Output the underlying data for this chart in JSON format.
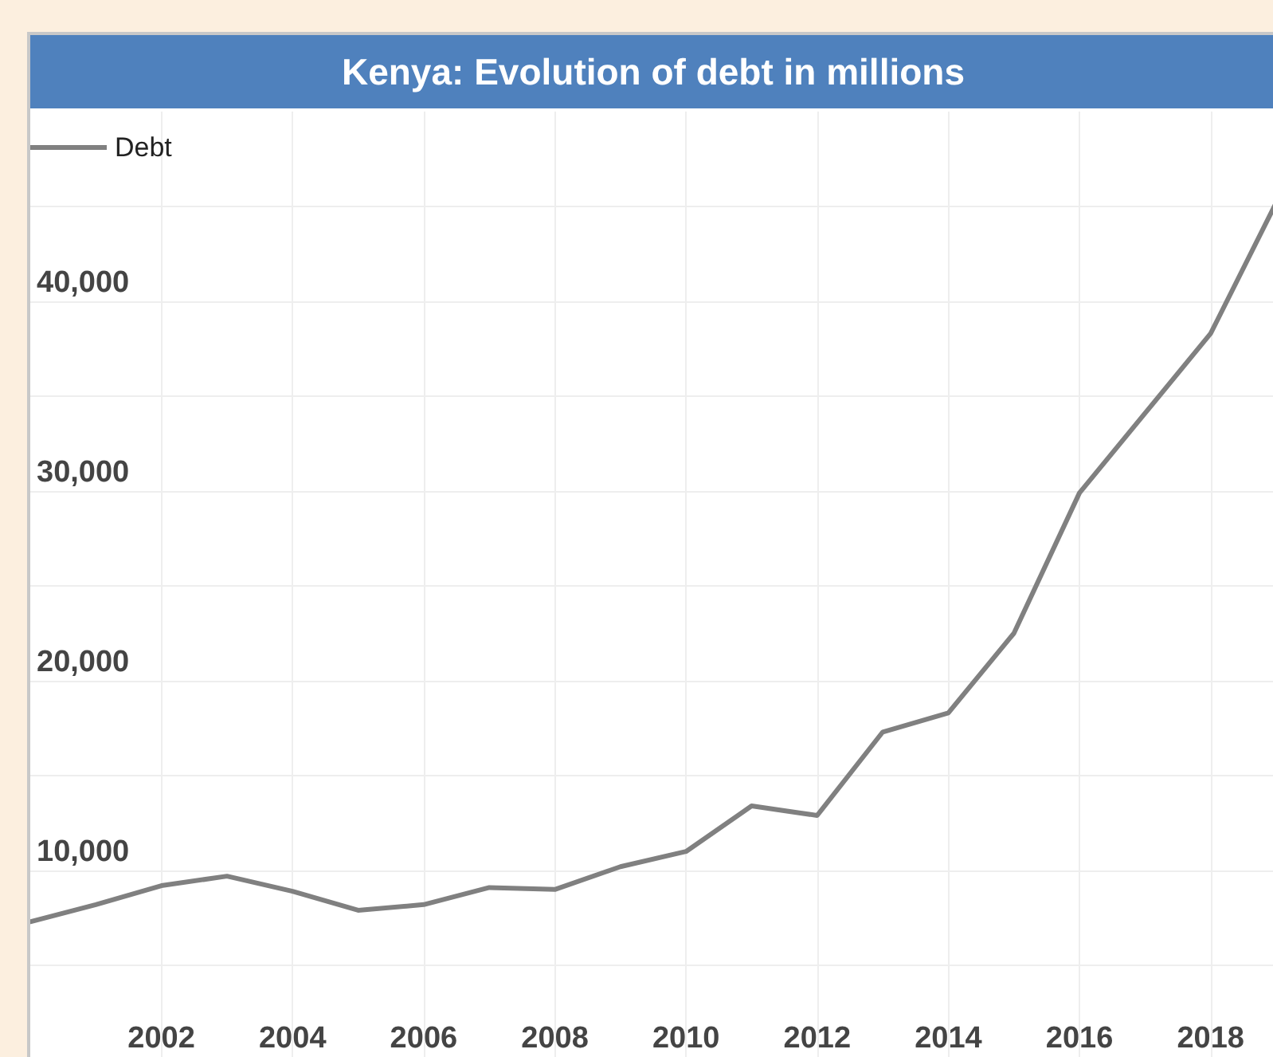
{
  "chart_data": {
    "type": "line",
    "title": "Kenya: Evolution of debt in millions",
    "x": [
      2000,
      2001,
      2002,
      2003,
      2004,
      2005,
      2006,
      2007,
      2008,
      2009,
      2010,
      2011,
      2012,
      2013,
      2014,
      2015,
      2016,
      2017,
      2018,
      2019
    ],
    "series": [
      {
        "name": "Debt",
        "color": "#808080",
        "values": [
          7300,
          8200,
          9200,
          9700,
          8900,
          7900,
          8200,
          9100,
          9000,
          10200,
          11000,
          13400,
          12900,
          17300,
          18300,
          22500,
          29900,
          34100,
          38300,
          45200
        ]
      }
    ],
    "xlim": [
      2000,
      2019
    ],
    "xticks": [
      2002,
      2004,
      2006,
      2008,
      2010,
      2012,
      2014,
      2016,
      2018
    ],
    "ylim": [
      0,
      50000
    ],
    "yticks": [
      {
        "value": 5000,
        "label": null
      },
      {
        "value": 10000,
        "label": "10,000"
      },
      {
        "value": 15000,
        "label": null
      },
      {
        "value": 20000,
        "label": "20,000"
      },
      {
        "value": 25000,
        "label": null
      },
      {
        "value": 30000,
        "label": "30,000"
      },
      {
        "value": 35000,
        "label": null
      },
      {
        "value": 40000,
        "label": "40,000"
      },
      {
        "value": 45000,
        "label": null
      }
    ],
    "grid": true,
    "legend": "top left",
    "marker": "none",
    "line_style": "solid"
  }
}
